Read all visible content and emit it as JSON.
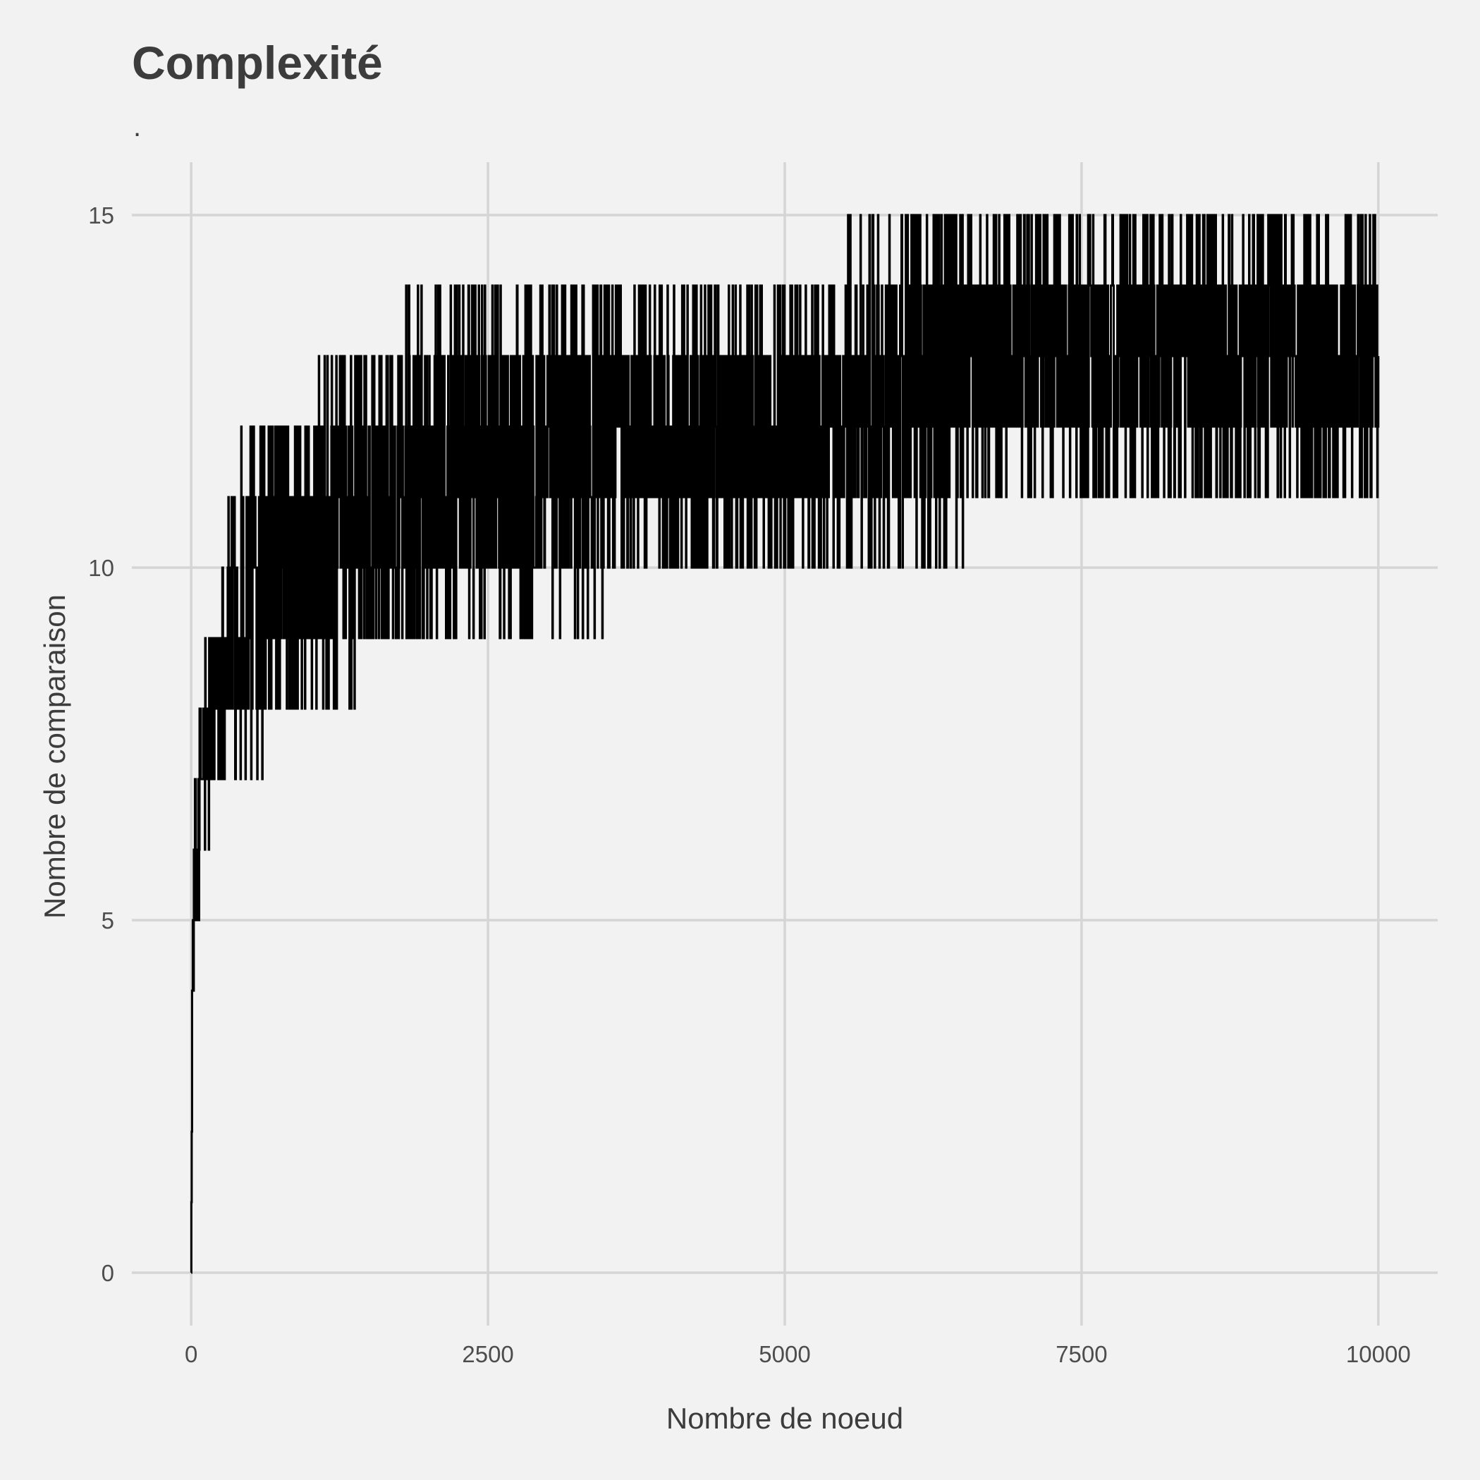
{
  "chart_data": {
    "type": "line",
    "title": "Complexité",
    "subtitle": ".",
    "xlabel": "Nombre de noeud",
    "ylabel": "Nombre de comparaison",
    "xlim": [
      -500,
      10500
    ],
    "ylim": [
      -0.75,
      15.75
    ],
    "x_ticks": [
      0,
      2500,
      5000,
      7500,
      10000
    ],
    "y_ticks": [
      0,
      5,
      10,
      15
    ],
    "grid": true,
    "legend": "none",
    "line_color": "#000000",
    "background": "#f2f2f2",
    "series": [
      {
        "x": [
          0,
          2,
          5,
          10,
          20,
          30,
          40,
          50,
          60,
          70,
          80,
          100,
          120,
          150,
          180,
          200,
          250,
          300,
          350,
          400,
          500,
          600,
          700,
          800,
          900,
          1000,
          1200,
          1400,
          1600,
          1800,
          2000,
          2500,
          3000,
          3500,
          4000,
          4500,
          5000,
          5500,
          6000,
          6500,
          7000,
          7500,
          8000,
          8500,
          9000,
          9500,
          10000
        ],
        "y_min": [
          0,
          2,
          3,
          4,
          4,
          4,
          5,
          5,
          5,
          6,
          6,
          6,
          6,
          6,
          7,
          7,
          7,
          7,
          7,
          7,
          7,
          8,
          8,
          8,
          8,
          8,
          8,
          9,
          9,
          9,
          9,
          9,
          9,
          10,
          10,
          10,
          10,
          10,
          10,
          11,
          11,
          11,
          11,
          11,
          11,
          11,
          11
        ],
        "y_max": [
          0,
          3,
          4,
          5,
          6,
          6,
          7,
          7,
          7,
          8,
          8,
          9,
          9,
          9,
          9,
          9,
          10,
          11,
          11,
          11,
          12,
          12,
          12,
          12,
          12,
          12,
          13,
          13,
          13,
          13,
          14,
          14,
          14,
          14,
          14,
          14,
          14,
          14,
          15,
          15,
          15,
          15,
          15,
          15,
          15,
          15,
          14
        ]
      }
    ]
  }
}
